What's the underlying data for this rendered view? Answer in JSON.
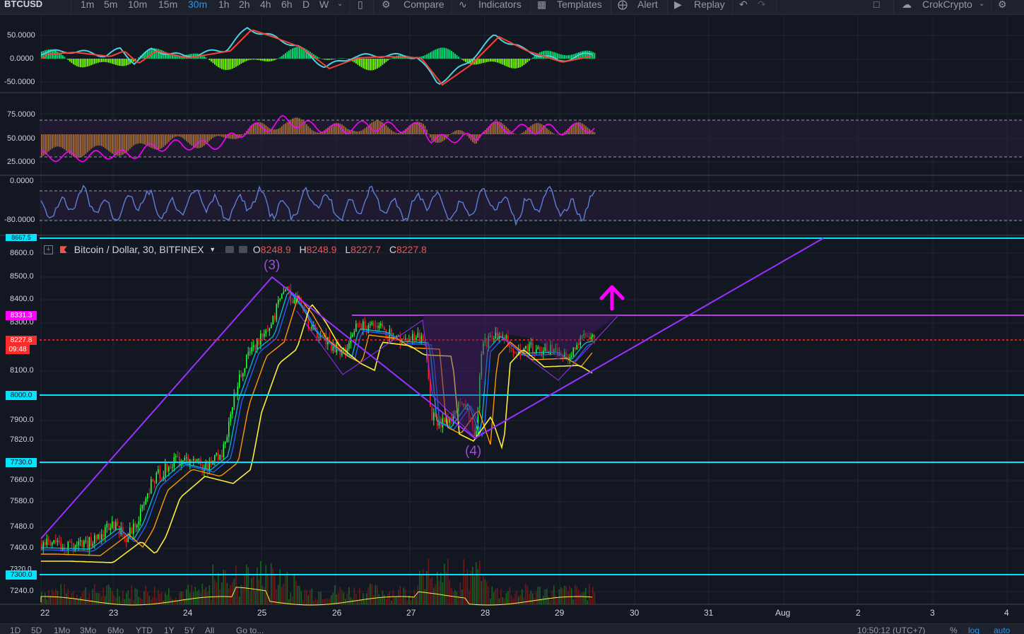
{
  "toolbar": {
    "symbol": "BTCUSD",
    "intervals": [
      "1m",
      "5m",
      "10m",
      "15m",
      "30m",
      "1h",
      "2h",
      "4h",
      "6h",
      "D",
      "W"
    ],
    "active_interval": "30m",
    "compare": "Compare",
    "indicators": "Indicators",
    "templates": "Templates",
    "alert": "Alert",
    "replay": "Replay",
    "user": "CrokCrypto"
  },
  "legend": {
    "title": "Bitcoin / Dollar, 30, BITFINEX",
    "o_label": "O",
    "o": "8248.9",
    "h_label": "H",
    "h": "8248.9",
    "l_label": "L",
    "l": "8227.7",
    "c_label": "C",
    "c": "8227.8"
  },
  "macd_axis": [
    "50.0000",
    "0.0000",
    "-50.0000"
  ],
  "rsi_axis": [
    "75.0000",
    "50.0000",
    "25.0000"
  ],
  "wr_axis": [
    "0.0000",
    "-80.0000"
  ],
  "price_axis": [
    "8600.0",
    "8500.0",
    "8400.0",
    "8300.0",
    "8100.0",
    "7900.0",
    "7820.0",
    "7660.0",
    "7580.0",
    "7480.0",
    "7400.0",
    "7240.0"
  ],
  "price_tags": {
    "top_level": "8667.5",
    "resistance": "8331.3",
    "last_price": "8227.8",
    "countdown": "09:48",
    "support_8000": "8000.0",
    "support_7730": "7730.0",
    "support_7300": "7300.0",
    "partial": "7320.0"
  },
  "waves": {
    "w3": "(3)",
    "w4": "(4)"
  },
  "time_axis": [
    "22",
    "23",
    "24",
    "25",
    "26",
    "27",
    "28",
    "29",
    "30",
    "31",
    "Aug",
    "2",
    "3",
    "4"
  ],
  "bottom": {
    "ranges": [
      "1D",
      "5D",
      "1Mo",
      "3Mo",
      "6Mo",
      "YTD",
      "1Y",
      "5Y",
      "All"
    ],
    "goto": "Go to...",
    "clock": "10:50:12 (UTC+7)",
    "percent": "%",
    "log": "log",
    "auto": "auto"
  },
  "colors": {
    "bg": "#131722",
    "up": "#26ff3a",
    "down": "#ff1f1f",
    "cyan": "#00e5ff",
    "purple": "#9b30ff",
    "magenta": "#ff00ff",
    "last_price": "#ff2b2b"
  }
}
